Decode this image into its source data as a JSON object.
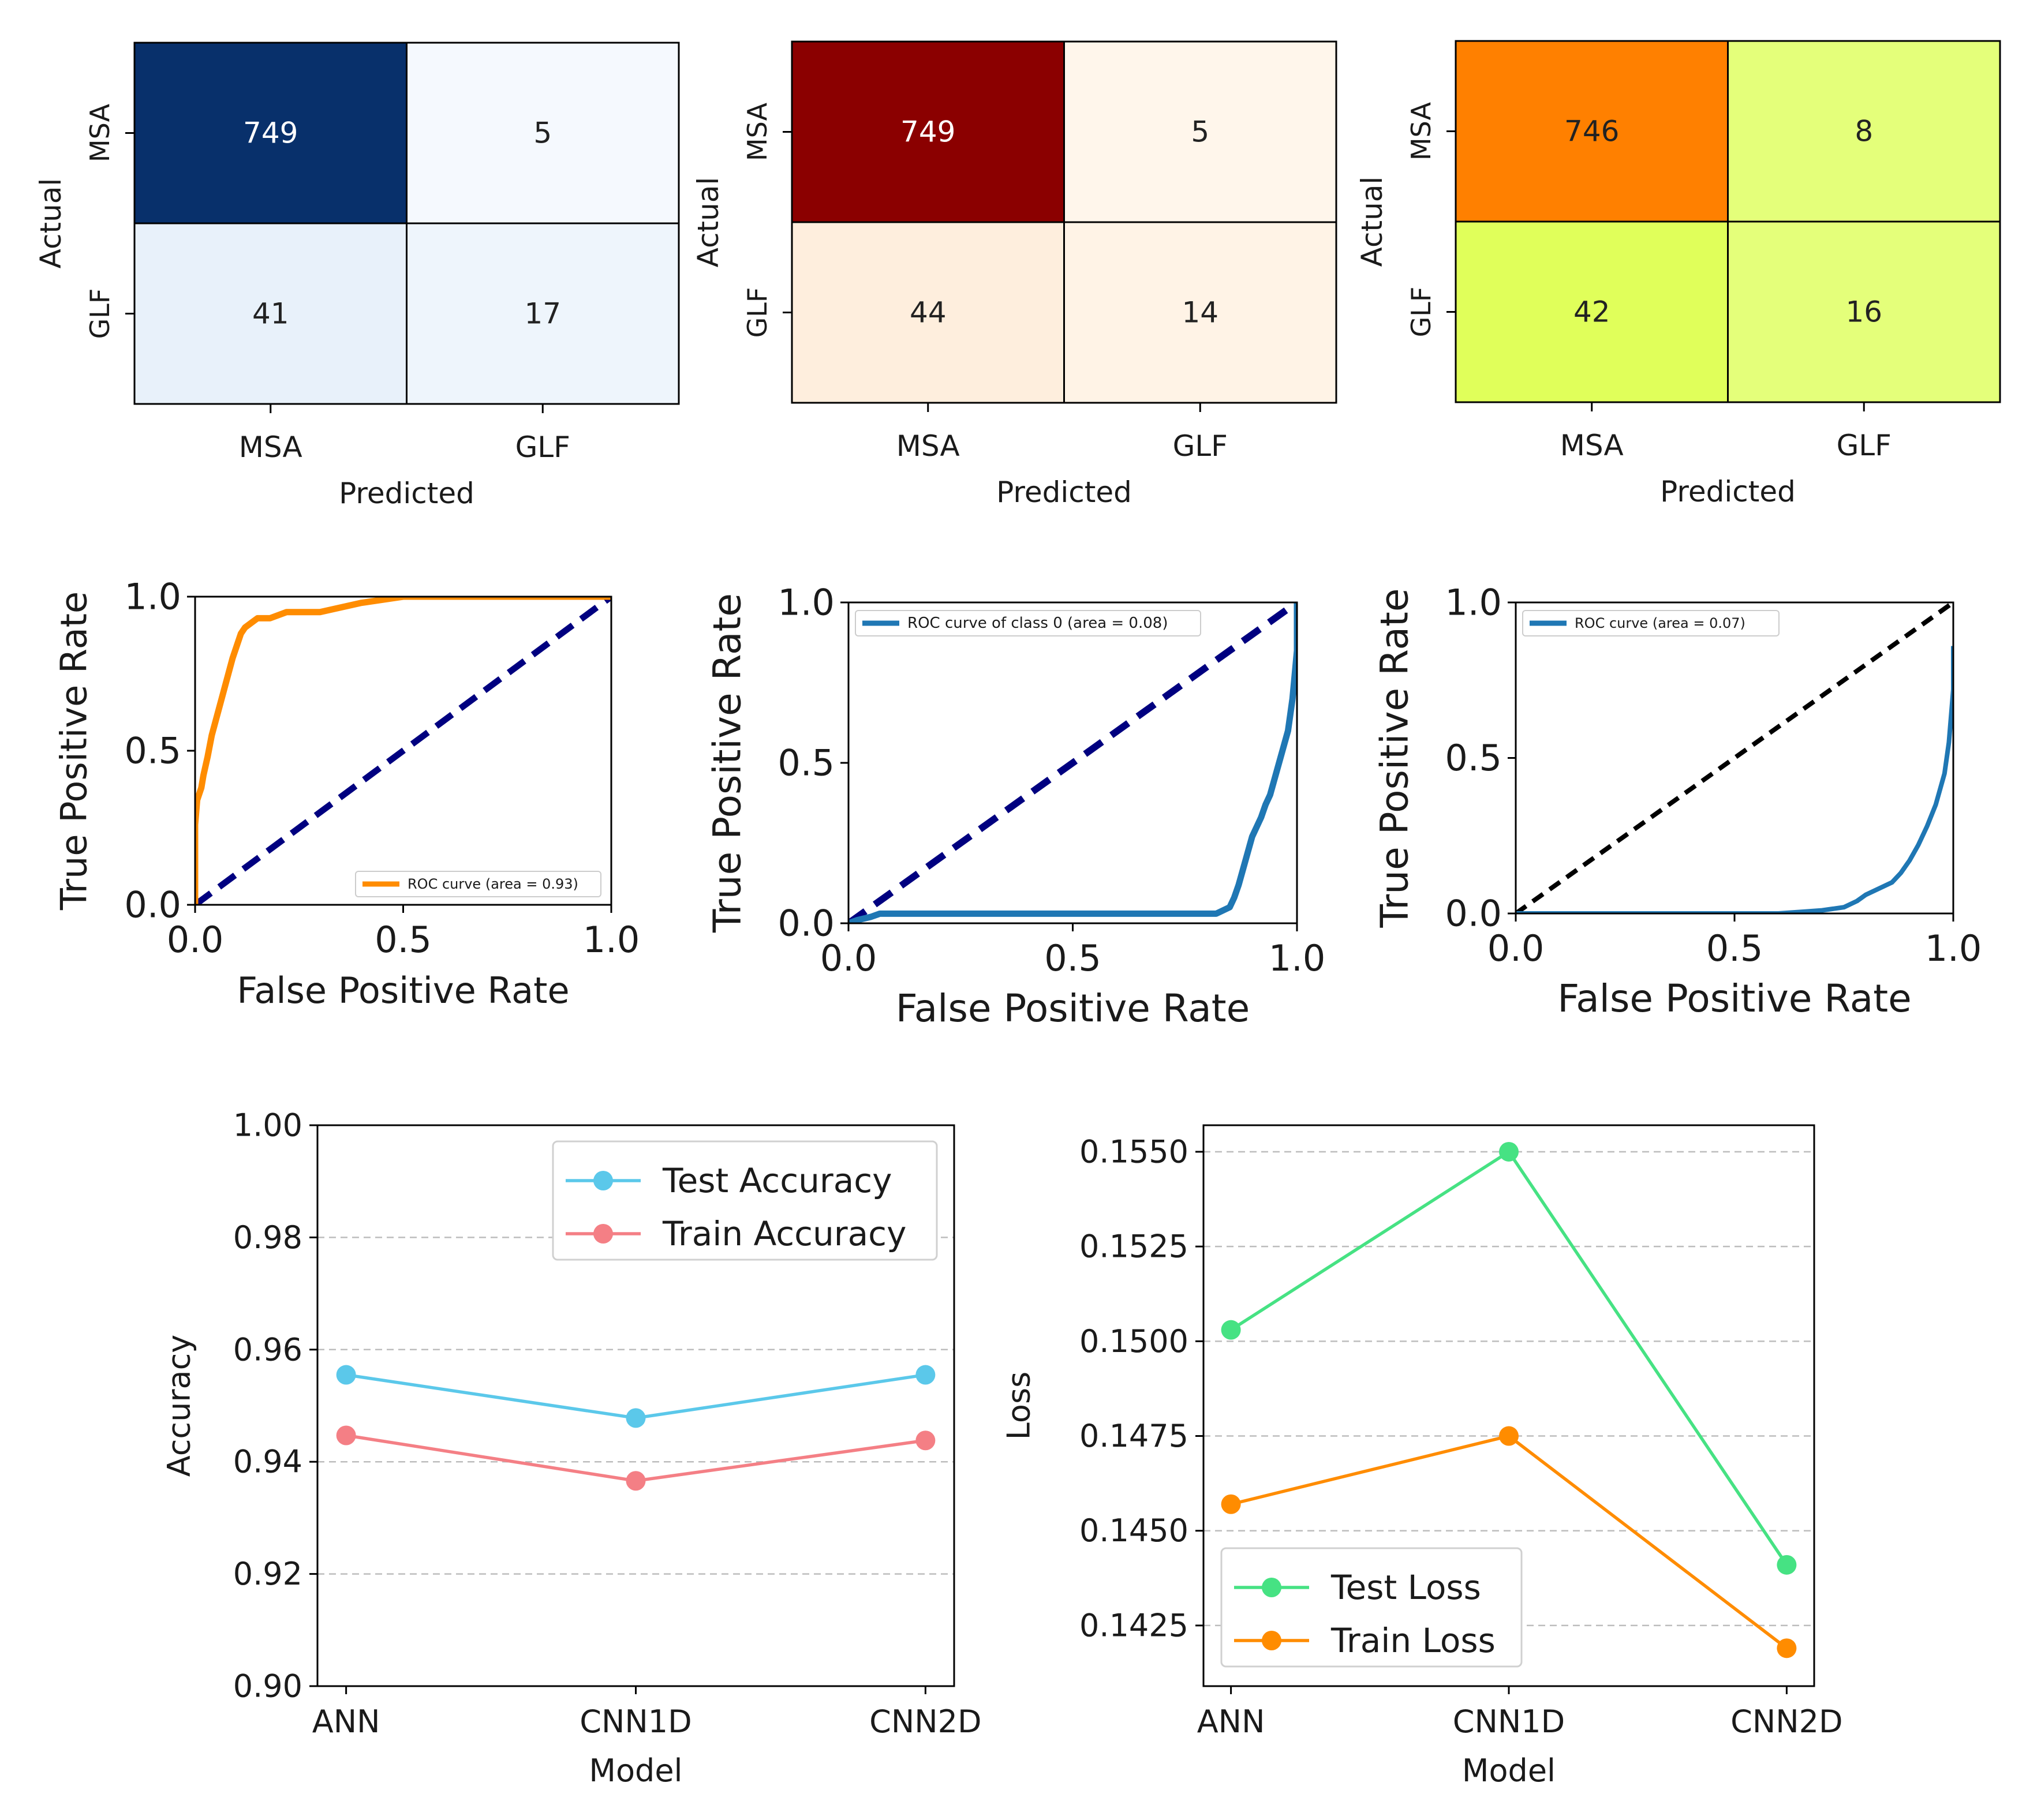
{
  "figure": {
    "confusion_matrices": [
      {
        "id": "cm1",
        "colormap": "blues",
        "row_labels": [
          "MSA",
          "GLF"
        ],
        "col_labels": [
          "MSA",
          "GLF"
        ],
        "values": [
          [
            749,
            5
          ],
          [
            41,
            17
          ]
        ],
        "colors": [
          [
            "#08306b",
            "#f5f9fe"
          ],
          [
            "#e8f1fa",
            "#eef5fc"
          ]
        ],
        "text_colors": [
          [
            "#ffffff",
            "#222222"
          ],
          [
            "#222222",
            "#222222"
          ]
        ],
        "xlabel": "Predicted",
        "ylabel": "Actual"
      },
      {
        "id": "cm2",
        "colormap": "oranges-red",
        "row_labels": [
          "MSA",
          "GLF"
        ],
        "col_labels": [
          "MSA",
          "GLF"
        ],
        "values": [
          [
            749,
            5
          ],
          [
            44,
            14
          ]
        ],
        "colors": [
          [
            "#8b0000",
            "#fff6eb"
          ],
          [
            "#feeedd",
            "#fff3e6"
          ]
        ],
        "text_colors": [
          [
            "#ffffff",
            "#222222"
          ],
          [
            "#222222",
            "#222222"
          ]
        ],
        "xlabel": "Predicted",
        "ylabel": "Actual"
      },
      {
        "id": "cm3",
        "colormap": "wistia",
        "row_labels": [
          "MSA",
          "GLF"
        ],
        "col_labels": [
          "MSA",
          "GLF"
        ],
        "values": [
          [
            746,
            8
          ],
          [
            42,
            16
          ]
        ],
        "colors": [
          [
            "#ff8000",
            "#e4ff7a"
          ],
          [
            "#e0ff5a",
            "#e4ff7a"
          ]
        ],
        "text_colors": [
          [
            "#222222",
            "#222222"
          ],
          [
            "#222222",
            "#222222"
          ]
        ],
        "xlabel": "Predicted",
        "ylabel": "Actual"
      }
    ],
    "roc_charts": [
      {
        "id": "roc1",
        "xlabel": "False Positive Rate",
        "ylabel": "True Positive Rate",
        "xticks": [
          "0.0",
          "0.5",
          "1.0"
        ],
        "yticks": [
          "0.0",
          "0.5",
          "1.0"
        ],
        "curve_color": "#ff8c00",
        "diag_color": "#000080",
        "legend_label": "ROC curve (area = 0.93)",
        "legend_loc": "lower right",
        "fpr": [
          0,
          0,
          0.005,
          0.01,
          0.015,
          0.02,
          0.03,
          0.04,
          0.05,
          0.06,
          0.07,
          0.08,
          0.09,
          0.1,
          0.11,
          0.12,
          0.13,
          0.14,
          0.15,
          0.18,
          0.22,
          0.3,
          0.4,
          0.5,
          0.7,
          0.9,
          1.0
        ],
        "tpr": [
          0,
          0.26,
          0.34,
          0.36,
          0.38,
          0.42,
          0.48,
          0.55,
          0.6,
          0.65,
          0.7,
          0.75,
          0.8,
          0.84,
          0.88,
          0.9,
          0.91,
          0.92,
          0.93,
          0.93,
          0.95,
          0.95,
          0.98,
          1.0,
          1.0,
          1.0,
          1.0
        ]
      },
      {
        "id": "roc2",
        "xlabel": "False Positive Rate",
        "ylabel": "True Positive Rate",
        "xticks": [
          "0.0",
          "0.5",
          "1.0"
        ],
        "yticks": [
          "0.0",
          "0.5",
          "1.0"
        ],
        "curve_color": "#1f77b4",
        "diag_color": "#000080",
        "legend_label": "ROC curve of class 0 (area = 0.08)",
        "legend_loc": "upper left",
        "fpr": [
          0,
          0.02,
          0.05,
          0.07,
          0.1,
          0.5,
          0.82,
          0.85,
          0.86,
          0.87,
          0.88,
          0.89,
          0.9,
          0.91,
          0.92,
          0.93,
          0.94,
          0.95,
          0.96,
          0.97,
          0.98,
          0.985,
          0.99,
          1.0,
          1.0
        ],
        "tpr": [
          0,
          0.01,
          0.02,
          0.03,
          0.03,
          0.03,
          0.03,
          0.05,
          0.08,
          0.12,
          0.17,
          0.22,
          0.27,
          0.3,
          0.33,
          0.37,
          0.4,
          0.45,
          0.5,
          0.55,
          0.6,
          0.65,
          0.7,
          0.85,
          1.0
        ]
      },
      {
        "id": "roc3",
        "xlabel": "False Positive Rate",
        "ylabel": "True Positive Rate",
        "xticks": [
          "0.0",
          "0.5",
          "1.0"
        ],
        "yticks": [
          "0.0",
          "0.5",
          "1.0"
        ],
        "curve_color": "#1f77b4",
        "diag_color": "#000000",
        "legend_label": "ROC curve (area = 0.07)",
        "legend_loc": "upper left",
        "fpr": [
          0,
          0.3,
          0.6,
          0.65,
          0.7,
          0.75,
          0.78,
          0.8,
          0.83,
          0.86,
          0.88,
          0.9,
          0.92,
          0.94,
          0.96,
          0.98,
          0.99,
          1.0,
          1.0
        ],
        "tpr": [
          0,
          0,
          0,
          0.005,
          0.01,
          0.02,
          0.04,
          0.06,
          0.08,
          0.1,
          0.13,
          0.17,
          0.22,
          0.28,
          0.35,
          0.45,
          0.55,
          0.72,
          0.86
        ]
      }
    ],
    "accuracy_chart": {
      "type": "line",
      "categories": [
        "ANN",
        "CNN1D",
        "CNN2D"
      ],
      "series": [
        {
          "name": "Test Accuracy",
          "values": [
            0.9555,
            0.9478,
            0.9555
          ],
          "color": "#5bc8ea"
        },
        {
          "name": "Train Accuracy",
          "values": [
            0.9447,
            0.9366,
            0.9438
          ],
          "color": "#f47f85"
        }
      ],
      "ylim": [
        0.9,
        1.0
      ],
      "yticks": [
        "0.90",
        "0.92",
        "0.94",
        "0.96",
        "0.98",
        "1.00"
      ],
      "xlabel": "Model",
      "ylabel": "Accuracy",
      "legend_loc": "upper right",
      "grid": "y dashed"
    },
    "loss_chart": {
      "type": "line",
      "categories": [
        "ANN",
        "CNN1D",
        "CNN2D"
      ],
      "series": [
        {
          "name": "Test Loss",
          "values": [
            0.1503,
            0.155,
            0.1441
          ],
          "color": "#46e283"
        },
        {
          "name": "Train Loss",
          "values": [
            0.1457,
            0.1475,
            0.1419
          ],
          "color": "#ff8c00"
        }
      ],
      "ylim": [
        0.1409,
        0.1557
      ],
      "yticks": [
        "0.1425",
        "0.1450",
        "0.1475",
        "0.1500",
        "0.1525",
        "0.1550"
      ],
      "xlabel": "Model",
      "ylabel": "Loss",
      "legend_loc": "lower left",
      "grid": "y dashed"
    }
  },
  "chart_data": [
    {
      "type": "heatmap",
      "title": "",
      "row_labels": [
        "MSA",
        "GLF"
      ],
      "col_labels": [
        "MSA",
        "GLF"
      ],
      "values": [
        [
          749,
          5
        ],
        [
          41,
          17
        ]
      ],
      "xlabel": "Predicted",
      "ylabel": "Actual"
    },
    {
      "type": "heatmap",
      "title": "",
      "row_labels": [
        "MSA",
        "GLF"
      ],
      "col_labels": [
        "MSA",
        "GLF"
      ],
      "values": [
        [
          749,
          5
        ],
        [
          44,
          14
        ]
      ],
      "xlabel": "Predicted",
      "ylabel": "Actual"
    },
    {
      "type": "heatmap",
      "title": "",
      "row_labels": [
        "MSA",
        "GLF"
      ],
      "col_labels": [
        "MSA",
        "GLF"
      ],
      "values": [
        [
          746,
          8
        ],
        [
          42,
          16
        ]
      ],
      "xlabel": "Predicted",
      "ylabel": "Actual"
    },
    {
      "type": "line",
      "title": "",
      "series": [
        {
          "name": "ROC curve (area = 0.93)"
        }
      ],
      "xlabel": "False Positive Rate",
      "ylabel": "True Positive Rate",
      "xlim": [
        0,
        1
      ],
      "ylim": [
        0,
        1
      ]
    },
    {
      "type": "line",
      "title": "",
      "series": [
        {
          "name": "ROC curve of class 0 (area = 0.08)"
        }
      ],
      "xlabel": "False Positive Rate",
      "ylabel": "True Positive Rate",
      "xlim": [
        0,
        1
      ],
      "ylim": [
        0,
        1
      ]
    },
    {
      "type": "line",
      "title": "",
      "series": [
        {
          "name": "ROC curve (area = 0.07)"
        }
      ],
      "xlabel": "False Positive Rate",
      "ylabel": "True Positive Rate",
      "xlim": [
        0,
        1
      ],
      "ylim": [
        0,
        1
      ]
    },
    {
      "type": "line",
      "title": "",
      "categories": [
        "ANN",
        "CNN1D",
        "CNN2D"
      ],
      "series": [
        {
          "name": "Test Accuracy",
          "values": [
            0.9555,
            0.9478,
            0.9555
          ]
        },
        {
          "name": "Train Accuracy",
          "values": [
            0.9447,
            0.9366,
            0.9438
          ]
        }
      ],
      "xlabel": "Model",
      "ylabel": "Accuracy",
      "ylim": [
        0.9,
        1.0
      ]
    },
    {
      "type": "line",
      "title": "",
      "categories": [
        "ANN",
        "CNN1D",
        "CNN2D"
      ],
      "series": [
        {
          "name": "Test Loss",
          "values": [
            0.1503,
            0.155,
            0.1441
          ]
        },
        {
          "name": "Train Loss",
          "values": [
            0.1457,
            0.1475,
            0.1419
          ]
        }
      ],
      "xlabel": "Model",
      "ylabel": "Loss",
      "ylim": [
        0.1409,
        0.1557
      ]
    }
  ]
}
